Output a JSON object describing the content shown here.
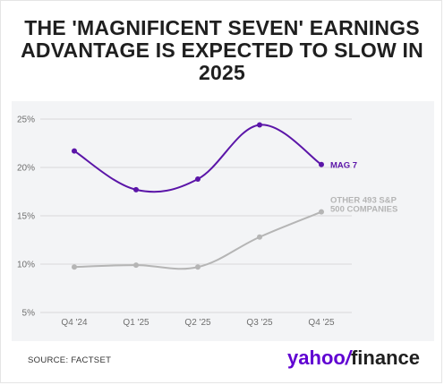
{
  "title": "THE 'MAGNIFICENT SEVEN' EARNINGS ADVANTAGE IS EXPECTED TO SLOW IN 2025",
  "source": "SOURCE: FACTSET",
  "logo": {
    "part1": "yahoo",
    "slash": "/",
    "part2": "finance"
  },
  "colors": {
    "mag7": "#5b15a8",
    "other": "#b5b5b5",
    "gridline": "#d9d9d9",
    "background": "#f3f4f6"
  },
  "chart_data": {
    "type": "line",
    "categories": [
      "Q4 '24",
      "Q1 '25",
      "Q2 '25",
      "Q3 '25",
      "Q4 '25"
    ],
    "ylim": [
      5,
      25
    ],
    "yticks": [
      5,
      10,
      15,
      20,
      25
    ],
    "ytick_labels": [
      "5%",
      "10%",
      "15%",
      "20%",
      "25%"
    ],
    "grid": true,
    "series": [
      {
        "name": "MAG 7",
        "label_lines": [
          "MAG 7"
        ],
        "values": [
          21.7,
          17.7,
          18.8,
          24.4,
          20.3
        ],
        "color": "#5b15a8"
      },
      {
        "name": "OTHER 493 S&P 500 COMPANIES",
        "label_lines": [
          "OTHER 493 S&P",
          "500 COMPANIES"
        ],
        "values": [
          9.7,
          9.9,
          9.7,
          12.8,
          15.4
        ],
        "color": "#b5b5b5"
      }
    ]
  }
}
